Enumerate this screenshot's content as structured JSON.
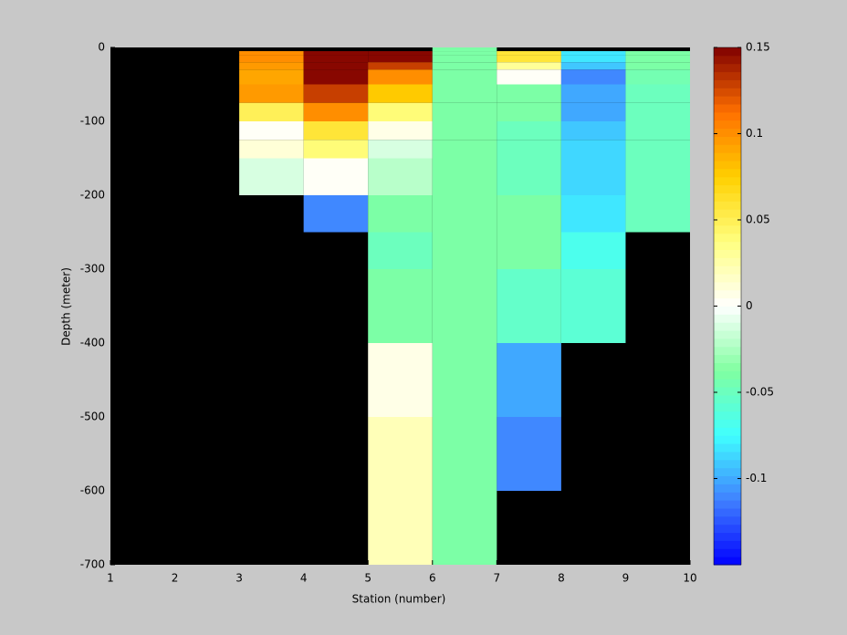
{
  "chart_data": {
    "type": "heatmap",
    "xlabel": "Station (number)",
    "ylabel": "Depth (meter)",
    "xlim": [
      1,
      10
    ],
    "xticks": [
      1,
      2,
      3,
      4,
      5,
      6,
      7,
      8,
      9,
      10
    ],
    "ylim": [
      -700,
      0
    ],
    "yticks": [
      0,
      -100,
      -200,
      -300,
      -400,
      -500,
      -600,
      -700
    ],
    "x_edges": [
      1,
      2,
      3,
      4,
      5,
      6,
      7,
      8,
      9,
      10
    ],
    "depth_edges": [
      0,
      -5,
      -10,
      -20,
      -30,
      -50,
      -75,
      -100,
      -125,
      -150,
      -200,
      -250,
      -300,
      -350,
      -400,
      -500,
      -600,
      -700
    ],
    "values": [
      [
        null,
        null,
        null,
        null,
        null,
        null,
        null,
        null,
        null,
        null,
        null,
        null,
        null,
        null,
        null,
        null,
        null
      ],
      [
        null,
        null,
        null,
        null,
        null,
        null,
        null,
        null,
        null,
        null,
        null,
        null,
        null,
        null,
        null,
        null,
        null
      ],
      [
        null,
        0.1,
        0.1,
        0.095,
        0.09,
        0.095,
        0.05,
        0.002,
        0.01,
        -0.01,
        null,
        null,
        null,
        null,
        null,
        null,
        null
      ],
      [
        null,
        0.15,
        0.15,
        0.15,
        0.15,
        0.13,
        0.1,
        0.06,
        0.04,
        0.003,
        -0.11,
        null,
        null,
        null,
        null,
        null,
        null
      ],
      [
        null,
        0.15,
        0.15,
        0.13,
        0.1,
        0.075,
        0.04,
        0.005,
        -0.01,
        -0.02,
        -0.04,
        -0.05,
        -0.04,
        -0.04,
        0.005,
        0.02,
        0.02
      ],
      [
        -0.04,
        -0.04,
        -0.04,
        -0.04,
        -0.04,
        -0.04,
        -0.04,
        -0.04,
        -0.04,
        -0.04,
        -0.04,
        -0.04,
        -0.04,
        -0.04,
        -0.04,
        -0.04,
        -0.04
      ],
      [
        null,
        0.06,
        0.06,
        0.03,
        0.0,
        -0.04,
        -0.04,
        -0.05,
        -0.05,
        -0.05,
        -0.04,
        -0.04,
        -0.055,
        -0.055,
        -0.1,
        -0.11,
        null
      ],
      [
        null,
        -0.08,
        -0.08,
        -0.09,
        -0.11,
        -0.1,
        -0.1,
        -0.09,
        -0.085,
        -0.085,
        -0.08,
        -0.07,
        -0.06,
        -0.06,
        null,
        null,
        null
      ],
      [
        null,
        -0.04,
        -0.04,
        -0.04,
        -0.045,
        -0.05,
        -0.05,
        -0.05,
        -0.05,
        -0.05,
        -0.05,
        null,
        null,
        null,
        null,
        null,
        null
      ]
    ],
    "background": "#000000",
    "clim": [
      -0.15,
      0.15
    ],
    "cticks": [
      0.15,
      0.1,
      0.05,
      0,
      -0.05,
      -0.1
    ],
    "colormap": [
      "#0000ff",
      "#4080ff",
      "#40ffff",
      "#80ffa0",
      "#ffffff",
      "#ffff80",
      "#ffd000",
      "#ff7000",
      "#800000"
    ],
    "colormap_levels": 64
  }
}
